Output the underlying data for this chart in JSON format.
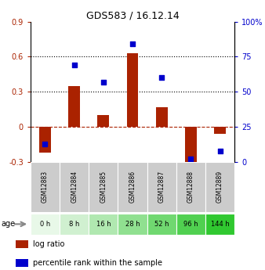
{
  "title": "GDS583 / 16.12.14",
  "samples": [
    "GSM12883",
    "GSM12884",
    "GSM12885",
    "GSM12886",
    "GSM12887",
    "GSM12888",
    "GSM12889"
  ],
  "ages": [
    "0 h",
    "8 h",
    "16 h",
    "28 h",
    "52 h",
    "96 h",
    "144 h"
  ],
  "log_ratio": [
    -0.22,
    0.35,
    0.1,
    0.63,
    0.17,
    -0.37,
    -0.06
  ],
  "percentile_rank": [
    0.13,
    0.69,
    0.57,
    0.84,
    0.6,
    0.02,
    0.08
  ],
  "bar_color": "#aa2200",
  "dot_color": "#0000cc",
  "ylim_left": [
    -0.3,
    0.9
  ],
  "ylim_right": [
    0,
    100
  ],
  "yticks_left": [
    -0.3,
    0.0,
    0.3,
    0.6,
    0.9
  ],
  "yticks_right": [
    0,
    25,
    50,
    75,
    100
  ],
  "ytick_labels_left": [
    "-0.3",
    "0",
    "0.3",
    "0.6",
    "0.9"
  ],
  "ytick_labels_right": [
    "0",
    "25",
    "50",
    "75",
    "100%"
  ],
  "hlines_dotted": [
    0.3,
    0.6
  ],
  "hline_dashed": 0.0,
  "age_colors": [
    "#e8f8e8",
    "#d0f0d0",
    "#b0e8b0",
    "#90e090",
    "#70d870",
    "#50d050",
    "#30c830"
  ],
  "sample_bg_color": "#cccccc",
  "legend_bar_label": "log ratio",
  "legend_dot_label": "percentile rank within the sample",
  "age_label": "age"
}
